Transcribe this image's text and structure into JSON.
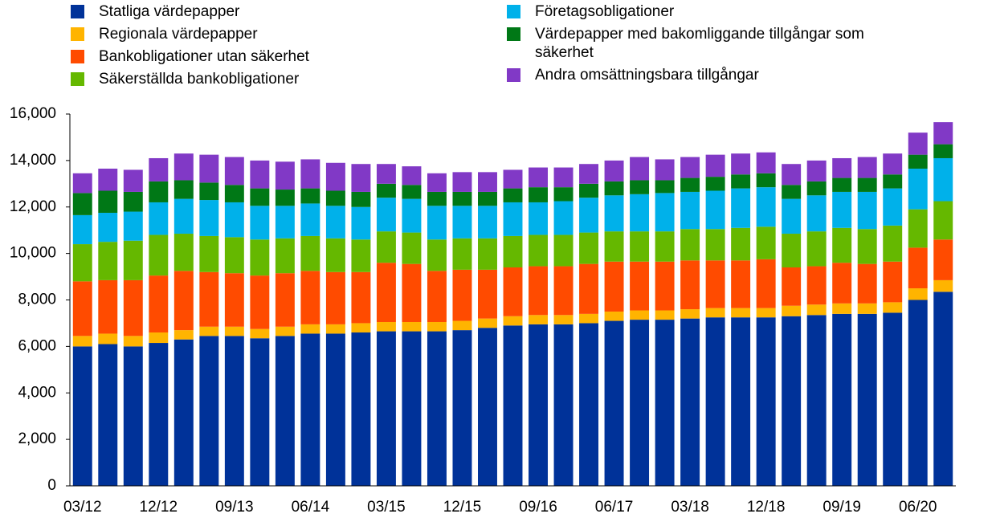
{
  "chart_data": {
    "type": "stacked-bar",
    "categories": [
      "03/12",
      null,
      null,
      "12/12",
      null,
      null,
      "09/13",
      null,
      null,
      "06/14",
      null,
      null,
      "03/15",
      null,
      null,
      "12/15",
      null,
      null,
      "09/16",
      null,
      null,
      "06/17",
      null,
      null,
      "03/18",
      null,
      null,
      "12/18",
      null,
      null,
      "09/19",
      null,
      null,
      "06/20",
      null
    ],
    "series": [
      {
        "name": "Statliga värdepapper",
        "color": "#003299",
        "values": [
          6000,
          6100,
          6000,
          6150,
          6300,
          6450,
          6450,
          6350,
          6450,
          6550,
          6550,
          6600,
          6650,
          6650,
          6650,
          6700,
          6800,
          6900,
          6950,
          6950,
          7000,
          7100,
          7150,
          7150,
          7200,
          7250,
          7250,
          7250,
          7300,
          7350,
          7400,
          7400,
          7450,
          8000,
          8350
        ]
      },
      {
        "name": "Regionala värdepapper",
        "color": "#ffb400",
        "values": [
          450,
          450,
          450,
          450,
          400,
          400,
          400,
          400,
          400,
          400,
          400,
          400,
          400,
          400,
          400,
          400,
          400,
          400,
          400,
          400,
          400,
          400,
          400,
          400,
          400,
          400,
          400,
          400,
          450,
          450,
          450,
          450,
          450,
          500,
          500
        ]
      },
      {
        "name": "Bankobligationer utan säkerhet",
        "color": "#ff4b00",
        "values": [
          2350,
          2300,
          2400,
          2450,
          2550,
          2350,
          2300,
          2300,
          2300,
          2300,
          2250,
          2200,
          2550,
          2500,
          2200,
          2200,
          2100,
          2100,
          2100,
          2100,
          2150,
          2150,
          2100,
          2100,
          2100,
          2050,
          2050,
          2100,
          1650,
          1650,
          1750,
          1700,
          1750,
          1750,
          1750
        ]
      },
      {
        "name": "Säkerställda bankobligationer",
        "color": "#65b800",
        "values": [
          1600,
          1650,
          1700,
          1750,
          1600,
          1550,
          1550,
          1550,
          1500,
          1500,
          1450,
          1400,
          1350,
          1350,
          1350,
          1350,
          1350,
          1350,
          1350,
          1350,
          1350,
          1300,
          1300,
          1300,
          1350,
          1350,
          1400,
          1400,
          1450,
          1500,
          1500,
          1500,
          1550,
          1650,
          1650
        ]
      },
      {
        "name": "Företagsobligationer",
        "color": "#00b1ea",
        "values": [
          1250,
          1250,
          1250,
          1400,
          1500,
          1550,
          1500,
          1450,
          1400,
          1400,
          1400,
          1400,
          1450,
          1450,
          1450,
          1400,
          1400,
          1450,
          1400,
          1450,
          1500,
          1550,
          1600,
          1650,
          1600,
          1650,
          1700,
          1700,
          1500,
          1550,
          1550,
          1600,
          1600,
          1750,
          1850
        ]
      },
      {
        "name": "Värdepapper med bakomliggande tillgångar som säkerhet",
        "color": "#007816",
        "values": [
          950,
          950,
          850,
          900,
          800,
          750,
          750,
          750,
          700,
          650,
          650,
          650,
          600,
          600,
          600,
          600,
          600,
          600,
          650,
          600,
          600,
          600,
          600,
          550,
          600,
          600,
          600,
          600,
          600,
          600,
          600,
          600,
          600,
          600,
          600
        ]
      },
      {
        "name": "Andra omsättningsbara tillgångar",
        "color": "#8139c6",
        "values": [
          850,
          950,
          950,
          1000,
          1150,
          1200,
          1200,
          1200,
          1200,
          1250,
          1200,
          1200,
          850,
          800,
          800,
          850,
          850,
          800,
          850,
          850,
          850,
          900,
          1000,
          900,
          900,
          950,
          900,
          900,
          900,
          900,
          850,
          900,
          900,
          950,
          950
        ]
      }
    ],
    "ylim": [
      0,
      16000
    ],
    "yticks": [
      0,
      {
        "value": 2000,
        "label": "2,000"
      },
      {
        "value": 4000,
        "label": "4,000"
      },
      {
        "value": 6000,
        "label": "6,000"
      },
      {
        "value": 8000,
        "label": "8,000"
      },
      {
        "value": 10000,
        "label": "10,000"
      },
      {
        "value": 12000,
        "label": "12,000"
      },
      {
        "value": 14000,
        "label": "14,000"
      },
      {
        "value": 16000,
        "label": "16,000"
      }
    ],
    "grid": false
  }
}
